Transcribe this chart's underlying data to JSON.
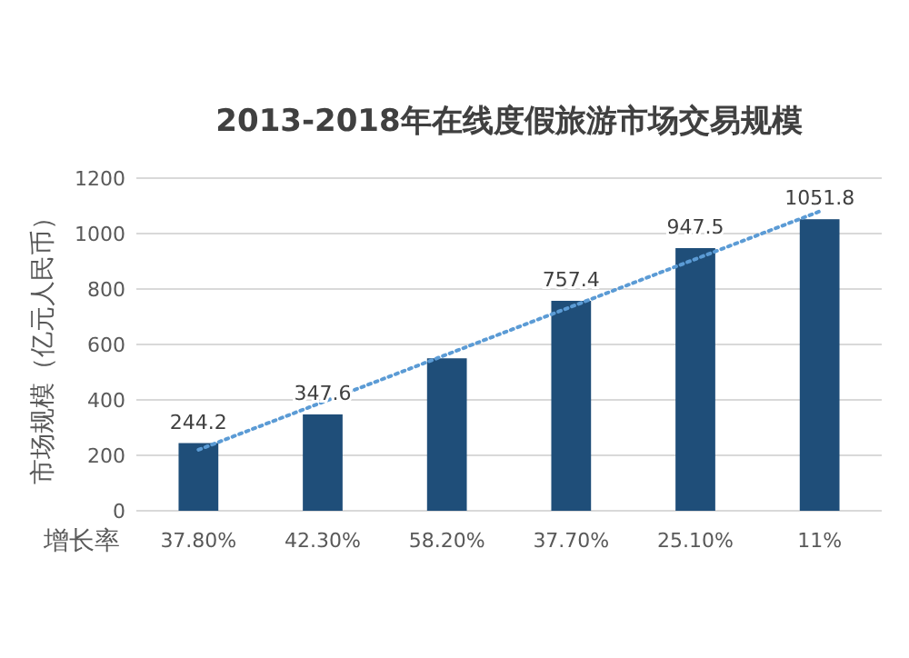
{
  "chart_data": {
    "type": "bar",
    "title": "2013-2018年在线度假旅游市场交易规模",
    "ylabel": "市场规模（亿元人民币）",
    "categories": [
      "37.80%",
      "42.30%",
      "58.20%",
      "37.70%",
      "25.10%",
      "11%"
    ],
    "series": [
      {
        "color": "#1f4e79",
        "values": [
          244.2,
          347.6,
          550,
          757.4,
          947.5,
          1051.8
        ],
        "value_labels": [
          "244.2",
          "347.6",
          null,
          "757.4",
          "947.5",
          "1051.8"
        ]
      },
      {
        "type": "line",
        "color": "#5b9bd5",
        "line_style": "dotted",
        "values": [
          220,
          392,
          564,
          736,
          908,
          1080
        ]
      }
    ],
    "ylim": [
      0,
      1200
    ],
    "yticks": [
      0,
      200,
      400,
      600,
      800,
      1000,
      1200
    ],
    "grid": "y",
    "annotations": [
      "增长率"
    ]
  }
}
